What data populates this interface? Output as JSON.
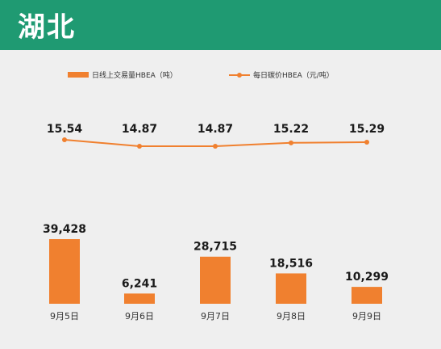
{
  "header": {
    "title": "湖北"
  },
  "colors": {
    "header": "#1f9a72",
    "series": "#f0802f",
    "background": "#efefef"
  },
  "chart_data": {
    "type": "bar",
    "categories": [
      "9月5日",
      "9月6日",
      "9月7日",
      "9月8日",
      "9月9日"
    ],
    "series": [
      {
        "name": "日线上交易量HBEA（吨）",
        "type": "bar",
        "values": [
          39428,
          6241,
          28715,
          18516,
          10299
        ],
        "labels": [
          "39,428",
          "6,241",
          "28,715",
          "18,516",
          "10,299"
        ]
      },
      {
        "name": "每日碳价HBEA（元/吨）",
        "type": "line",
        "values": [
          15.54,
          14.87,
          14.87,
          15.22,
          15.29
        ],
        "labels": [
          "15.54",
          "14.87",
          "14.87",
          "15.22",
          "15.29"
        ]
      }
    ],
    "grid": false,
    "legend": "top-center"
  }
}
